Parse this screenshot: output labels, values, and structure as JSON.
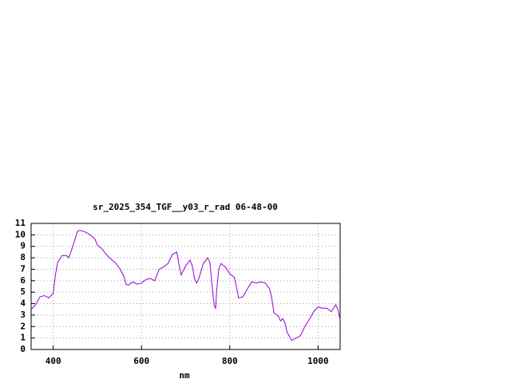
{
  "chart_data": {
    "type": "line",
    "title": "sr_2025_354_TGF__y03_r_rad 06-48-00",
    "x_label": "nm",
    "x": [
      350,
      360,
      370,
      380,
      390,
      400,
      405,
      410,
      420,
      430,
      435,
      440,
      450,
      455,
      460,
      470,
      480,
      490,
      495,
      500,
      510,
      520,
      530,
      540,
      550,
      560,
      565,
      570,
      580,
      590,
      600,
      610,
      620,
      630,
      640,
      650,
      660,
      670,
      680,
      685,
      690,
      700,
      710,
      715,
      720,
      725,
      730,
      740,
      750,
      755,
      760,
      765,
      768,
      770,
      775,
      780,
      790,
      800,
      810,
      815,
      820,
      830,
      840,
      850,
      860,
      870,
      880,
      890,
      895,
      900,
      910,
      915,
      920,
      925,
      930,
      940,
      950,
      960,
      970,
      980,
      990,
      1000,
      1010,
      1020,
      1030,
      1040,
      1045,
      1050
    ],
    "series": [
      {
        "color": "#9400d3",
        "values": [
          3.5,
          3.9,
          4.6,
          4.7,
          4.5,
          4.9,
          6.5,
          7.6,
          8.2,
          8.2,
          8.0,
          8.5,
          9.7,
          10.3,
          10.4,
          10.3,
          10.1,
          9.8,
          9.6,
          9.1,
          8.8,
          8.3,
          7.9,
          7.6,
          7.1,
          6.4,
          5.7,
          5.6,
          5.9,
          5.7,
          5.8,
          6.1,
          6.2,
          6.0,
          7.0,
          7.2,
          7.5,
          8.3,
          8.5,
          7.4,
          6.5,
          7.3,
          7.8,
          7.3,
          6.2,
          5.8,
          6.2,
          7.5,
          8.0,
          7.6,
          5.5,
          3.8,
          3.6,
          5.0,
          7.0,
          7.5,
          7.2,
          6.6,
          6.3,
          5.5,
          4.5,
          4.6,
          5.3,
          5.9,
          5.8,
          5.9,
          5.8,
          5.3,
          4.5,
          3.2,
          2.9,
          2.5,
          2.7,
          2.3,
          1.5,
          0.8,
          1.0,
          1.2,
          2.0,
          2.6,
          3.3,
          3.7,
          3.6,
          3.6,
          3.3,
          3.9,
          3.5,
          2.6
        ]
      }
    ],
    "xlim": [
      350,
      1050
    ],
    "ylim": [
      0,
      11
    ],
    "xticks": [
      400,
      600,
      800,
      1000
    ],
    "yticks": [
      0,
      1,
      2,
      3,
      4,
      5,
      6,
      7,
      8,
      9,
      10,
      11
    ],
    "grid": true
  }
}
